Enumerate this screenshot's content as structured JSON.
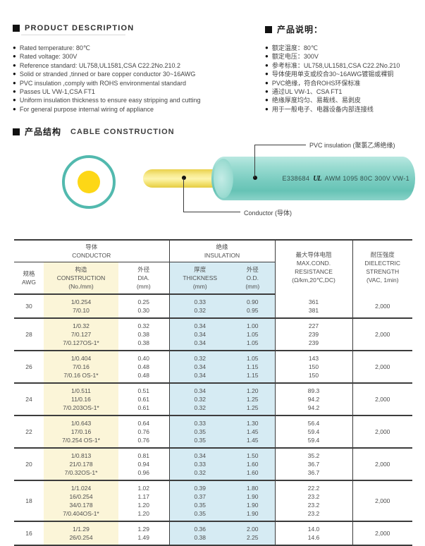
{
  "bullet_glyph": "●",
  "colors": {
    "teal_accent": "#52b9ae",
    "conductor_yellow": "#fdd716",
    "table_construction_bg": "#fbf5d8",
    "table_insulation_bg": "#d6ebf3",
    "table_line": "#3c3c3c"
  },
  "product_description": {
    "heading": "PRODUCT DESCRIPTION",
    "items": [
      "Rated temperature: 80℃",
      "Rated voltage: 300V",
      "Reference standard: UL758,UL1581,CSA C22.2No.210.2",
      "Solid or stranded ,tinned or bare copper conductor 30~16AWG",
      "PVC insulation ,comply with ROHS environmental standard",
      "Passes UL VW-1,CSA FT1",
      "Uniform insulation thickness to ensure easy stripping and cutting",
      "For general purpose internal wiring of appliance"
    ]
  },
  "product_notes": {
    "heading": "产品说明：",
    "items": [
      "额定温度：80℃",
      "额定电压：300V",
      "参考标准：UL758,UL1581,CSA C22.2No.210",
      "导体使用单支或绞合30~16AWG镀锡或裸铜",
      "PVC绝缘，符合ROHS环保标准",
      "通过UL VW-1、CSA FT1",
      "绝缘厚度均匀、易裁线、易剥皮",
      "用于一般电子、电器设备内部连接线"
    ]
  },
  "construction": {
    "heading_cn": "产品结构",
    "heading_en": "CABLE CONSTRUCTION",
    "pvc_label": "PVC insulation (聚氯乙烯绝缘)",
    "conductor_label": "Conductor (导体)",
    "marking_prefix": "E338684",
    "ul_mark": "UL",
    "marking_suffix": "AWM 1095 80C 300V VW-1"
  },
  "table": {
    "group_headers": {
      "conductor": "导体\nCONDUCTOR",
      "insulation": "绝缘\nINSULATION",
      "resistance": "最大导体电阻\nMAX.COND.\nRESISTANCE\n(Ω/km,20℃,DC)",
      "dielectric": "耐压强度\nDIELECTRIC\nSTRENGTH\n(VAC, 1min)"
    },
    "columns": {
      "awg": "规格\nAWG",
      "construction": "构造\nCONSTRUCTION\n(No./mm)",
      "dia": "外径\nDIA.\n(mm)",
      "thickness": "厚度\nTHICKNESS\n(mm)",
      "od": "外径\nO.D.\n(mm)"
    },
    "rows": [
      {
        "awg": "30",
        "construction": [
          "1/0.254",
          "7/0.10"
        ],
        "dia": [
          "0.25",
          "0.30"
        ],
        "thickness": [
          "0.33",
          "0.32"
        ],
        "od": [
          "0.90",
          "0.95"
        ],
        "resistance": [
          "361",
          "381"
        ],
        "dielectric": "2,000"
      },
      {
        "awg": "28",
        "construction": [
          "1/0.32",
          "7/0.127",
          "7/0.127OS-1*"
        ],
        "dia": [
          "0.32",
          "0.38",
          "0.38"
        ],
        "thickness": [
          "0.34",
          "0.34",
          "0.34"
        ],
        "od": [
          "1.00",
          "1.05",
          "1.05"
        ],
        "resistance": [
          "227",
          "239",
          "239"
        ],
        "dielectric": "2,000"
      },
      {
        "awg": "26",
        "construction": [
          "1/0.404",
          "7/0.16",
          "7/0.16 OS-1*"
        ],
        "dia": [
          "0.40",
          "0.48",
          "0.48"
        ],
        "thickness": [
          "0.32",
          "0.34",
          "0.34"
        ],
        "od": [
          "1.05",
          "1.15",
          "1.15"
        ],
        "resistance": [
          "143",
          "150",
          "150"
        ],
        "dielectric": "2,000"
      },
      {
        "awg": "24",
        "construction": [
          "1/0.511",
          "11/0.16",
          "7/0.203OS-1*"
        ],
        "dia": [
          "0.51",
          "0.61",
          "0.61"
        ],
        "thickness": [
          "0.34",
          "0.32",
          "0.32"
        ],
        "od": [
          "1.20",
          "1.25",
          "1.25"
        ],
        "resistance": [
          "89.3",
          "94.2",
          "94.2"
        ],
        "dielectric": "2,000"
      },
      {
        "awg": "22",
        "construction": [
          "1/0.643",
          "17/0.16",
          "7/0.254 OS-1*"
        ],
        "dia": [
          "0.64",
          "0.76",
          "0.76"
        ],
        "thickness": [
          "0.33",
          "0.35",
          "0.35"
        ],
        "od": [
          "1.30",
          "1.45",
          "1.45"
        ],
        "resistance": [
          "56.4",
          "59.4",
          "59.4"
        ],
        "dielectric": "2,000"
      },
      {
        "awg": "20",
        "construction": [
          "1/0.813",
          "21/0.178",
          "7/0.32OS-1*"
        ],
        "dia": [
          "0.81",
          "0.94",
          "0.96"
        ],
        "thickness": [
          "0.34",
          "0.33",
          "0.32"
        ],
        "od": [
          "1.50",
          "1.60",
          "1.60"
        ],
        "resistance": [
          "35.2",
          "36.7",
          "36.7"
        ],
        "dielectric": "2,000"
      },
      {
        "awg": "18",
        "construction": [
          "1/1.024",
          "16/0.254",
          "34/0.178",
          "7/0.404OS-1*"
        ],
        "dia": [
          "1.02",
          "1.17",
          "1.20",
          "1.20"
        ],
        "thickness": [
          "0.39",
          "0.37",
          "0.35",
          "0.35"
        ],
        "od": [
          "1.80",
          "1.90",
          "1.90",
          "1.90"
        ],
        "resistance": [
          "22.2",
          "23.2",
          "23.2",
          "23.2"
        ],
        "dielectric": "2,000"
      },
      {
        "awg": "16",
        "construction": [
          "1/1.29",
          "26/0.254"
        ],
        "dia": [
          "1.29",
          "1.49"
        ],
        "thickness": [
          "0.36",
          "0.38"
        ],
        "od": [
          "2.00",
          "2.25"
        ],
        "resistance": [
          "14.0",
          "14.6"
        ],
        "dielectric": "2,000"
      }
    ]
  }
}
